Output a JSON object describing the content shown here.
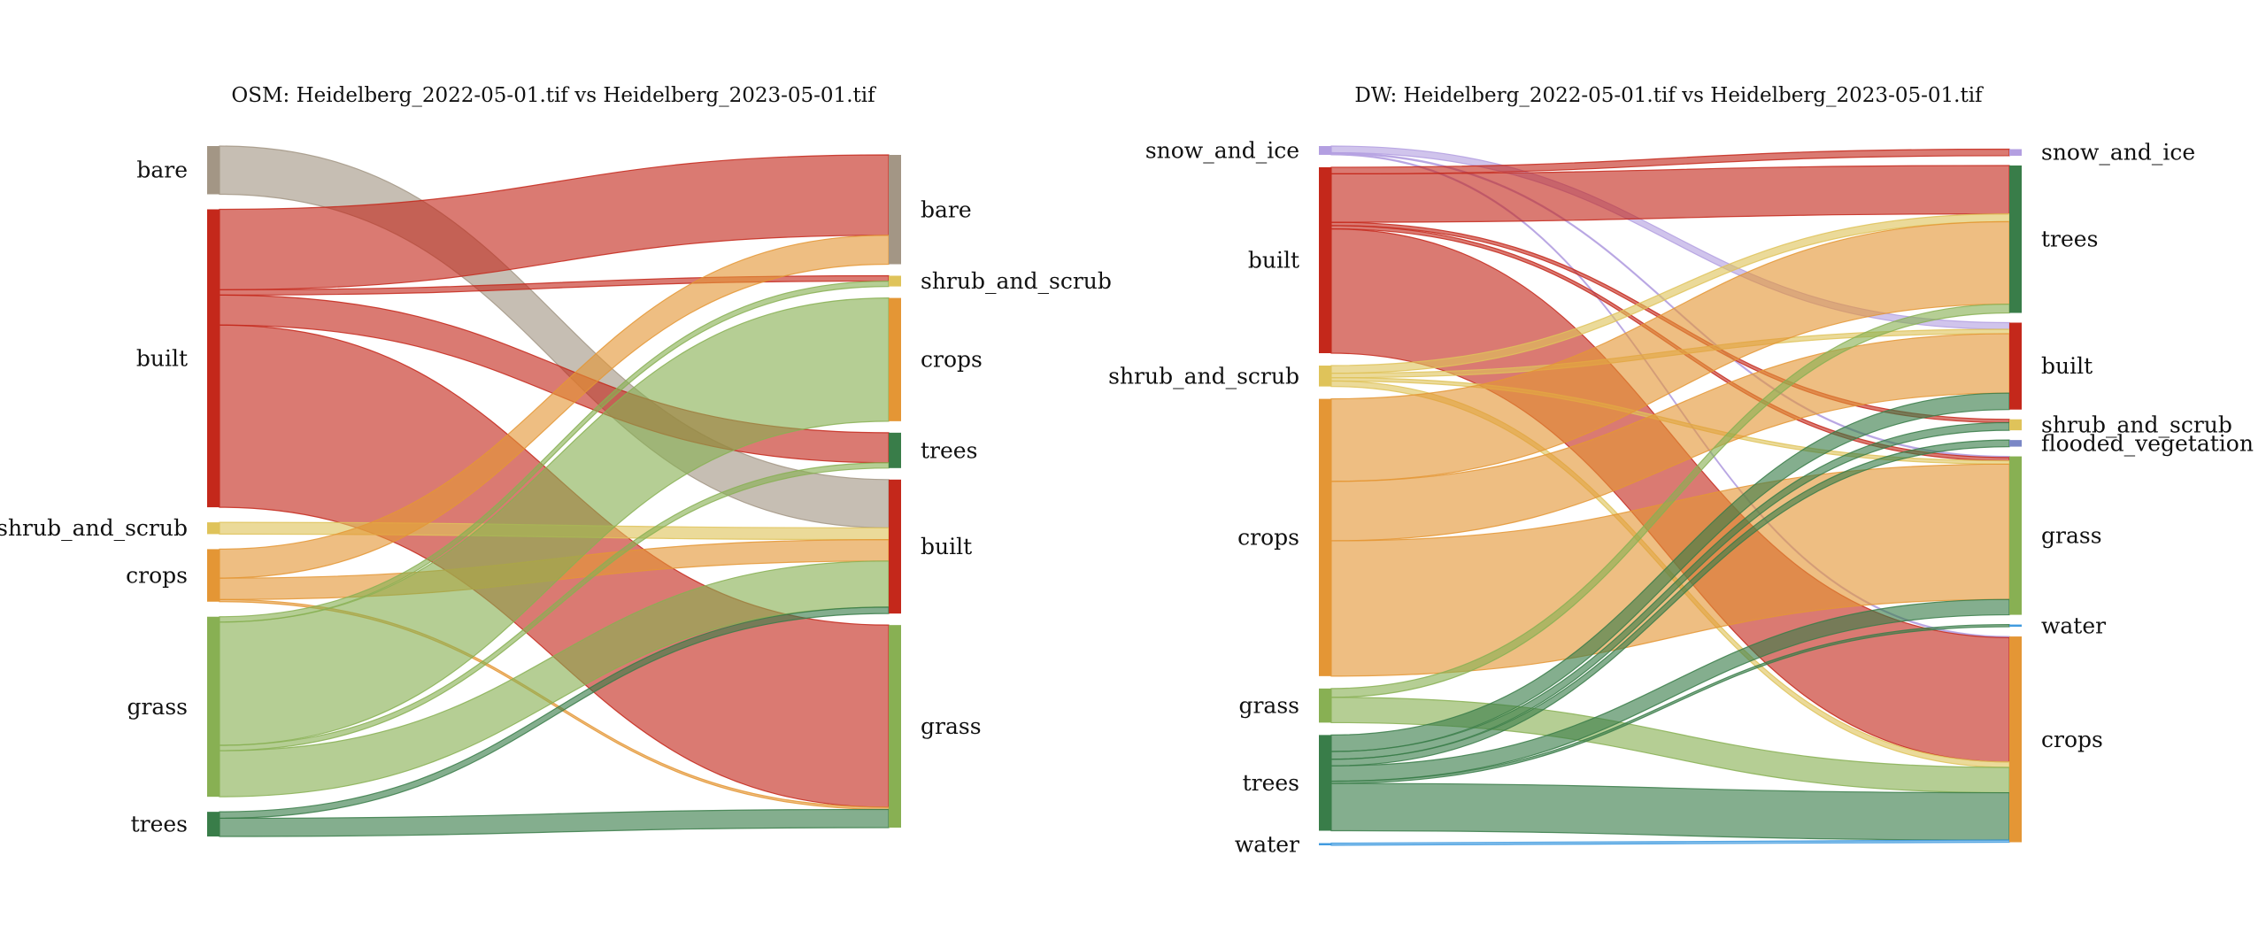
{
  "chart_data": [
    {
      "type": "sankey",
      "title": "OSM: Heidelberg_2022-05-01.tif vs Heidelberg_2023-05-01.tif",
      "left_nodes": [
        "bare",
        "built",
        "shrub_and_scrub",
        "crops",
        "grass",
        "trees"
      ],
      "right_nodes": [
        "bare",
        "shrub_and_scrub",
        "crops",
        "trees",
        "built",
        "grass"
      ],
      "flows": [
        {
          "source": "bare",
          "target": "built",
          "value": 45
        },
        {
          "source": "built",
          "target": "bare",
          "value": 75
        },
        {
          "source": "built",
          "target": "shrub_and_scrub",
          "value": 5
        },
        {
          "source": "built",
          "target": "trees",
          "value": 28
        },
        {
          "source": "built",
          "target": "grass",
          "value": 170
        },
        {
          "source": "shrub_and_scrub",
          "target": "built",
          "value": 11
        },
        {
          "source": "crops",
          "target": "bare",
          "value": 27
        },
        {
          "source": "crops",
          "target": "built",
          "value": 20
        },
        {
          "source": "crops",
          "target": "grass",
          "value": 2
        },
        {
          "source": "grass",
          "target": "crops",
          "value": 115
        },
        {
          "source": "grass",
          "target": "shrub_and_scrub",
          "value": 5
        },
        {
          "source": "grass",
          "target": "trees",
          "value": 5
        },
        {
          "source": "grass",
          "target": "built",
          "value": 43
        },
        {
          "source": "trees",
          "target": "built",
          "value": 6
        },
        {
          "source": "trees",
          "target": "grass",
          "value": 17
        }
      ]
    },
    {
      "type": "sankey",
      "title": "DW: Heidelberg_2022-05-01.tif vs Heidelberg_2023-05-01.tif",
      "left_nodes": [
        "snow_and_ice",
        "built",
        "shrub_and_scrub",
        "crops",
        "grass",
        "trees",
        "water"
      ],
      "right_nodes": [
        "snow_and_ice",
        "trees",
        "built",
        "shrub_and_scrub",
        "flooded_vegetation",
        "grass",
        "water",
        "crops"
      ],
      "flows": [
        {
          "source": "snow_and_ice",
          "target": "built",
          "value": 6
        },
        {
          "source": "snow_and_ice",
          "target": "grass",
          "value": 1
        },
        {
          "source": "snow_and_ice",
          "target": "crops",
          "value": 1
        },
        {
          "source": "built",
          "target": "snow_and_ice",
          "value": 6
        },
        {
          "source": "built",
          "target": "trees",
          "value": 44
        },
        {
          "source": "built",
          "target": "shrub_and_scrub",
          "value": 3
        },
        {
          "source": "built",
          "target": "grass",
          "value": 3
        },
        {
          "source": "built",
          "target": "crops",
          "value": 113
        },
        {
          "source": "shrub_and_scrub",
          "target": "trees",
          "value": 7
        },
        {
          "source": "shrub_and_scrub",
          "target": "built",
          "value": 4
        },
        {
          "source": "shrub_and_scrub",
          "target": "grass",
          "value": 3
        },
        {
          "source": "shrub_and_scrub",
          "target": "crops",
          "value": 5
        },
        {
          "source": "crops",
          "target": "trees",
          "value": 75
        },
        {
          "source": "crops",
          "target": "built",
          "value": 54
        },
        {
          "source": "crops",
          "target": "grass",
          "value": 123
        },
        {
          "source": "grass",
          "target": "trees",
          "value": 8
        },
        {
          "source": "grass",
          "target": "crops",
          "value": 23
        },
        {
          "source": "trees",
          "target": "built",
          "value": 15
        },
        {
          "source": "trees",
          "target": "shrub_and_scrub",
          "value": 7
        },
        {
          "source": "trees",
          "target": "flooded_vegetation",
          "value": 6
        },
        {
          "source": "trees",
          "target": "grass",
          "value": 14
        },
        {
          "source": "trees",
          "target": "water",
          "value": 2
        },
        {
          "source": "trees",
          "target": "crops",
          "value": 43
        },
        {
          "source": "water",
          "target": "crops",
          "value": 2
        }
      ]
    }
  ],
  "colors": {
    "bare": "#a39685",
    "built": "#c4281b",
    "shrub_and_scrub": "#dfc35a",
    "crops": "#e49635",
    "grass": "#88b053",
    "trees": "#397d49",
    "water": "#419bdf",
    "flooded_vegetation": "#7a87c6",
    "snow_and_ice": "#b39fe1"
  }
}
